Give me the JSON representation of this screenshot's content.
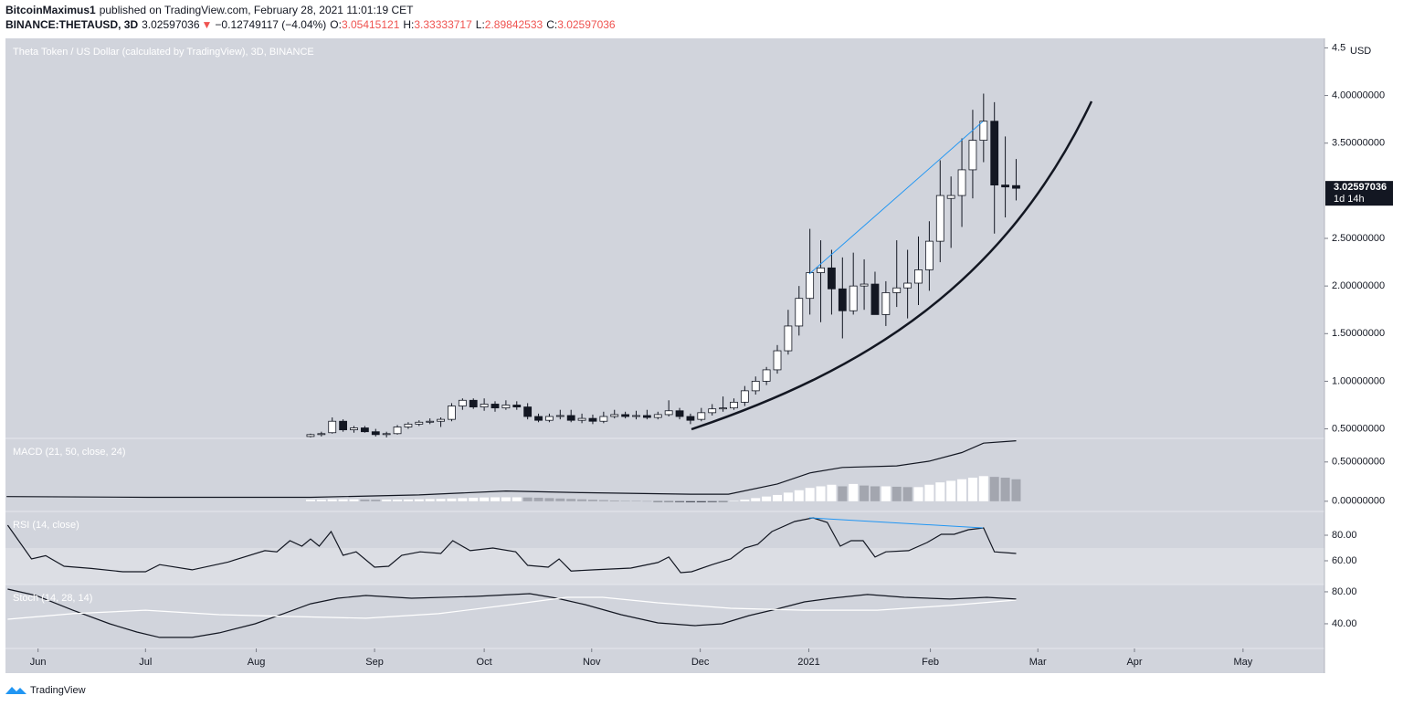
{
  "header": {
    "author": "BitcoinMaximus1",
    "published": "published on TradingView.com, February 28, 2021 11:01:19 CET",
    "symbol": "BINANCE:THETAUSD, 3D",
    "price": "3.02597036",
    "direction_symbol": "▼",
    "change": "−0.12749117 (−4.04%)",
    "ohlc": [
      {
        "label": "O:",
        "value": "3.05415121"
      },
      {
        "label": "H:",
        "value": "3.33333717"
      },
      {
        "label": "L:",
        "value": "2.89842533"
      },
      {
        "label": "C:",
        "value": "3.02597036"
      }
    ]
  },
  "footer": {
    "brand": "TradingView"
  },
  "chart_data": [
    {
      "type": "candlestick",
      "title": "Theta Token / US Dollar (calculated by TradingView), 3D, BINANCE",
      "unit_label": "USD",
      "xlim": [
        -28.1,
        93.4
      ],
      "xticks": [
        {
          "value": -25.1,
          "label": "Jun"
        },
        {
          "value": -15.2,
          "label": "Jul"
        },
        {
          "value": -5.0,
          "label": "Aug"
        },
        {
          "value": 5.9,
          "label": "Sep"
        },
        {
          "value": 16.0,
          "label": "Oct"
        },
        {
          "value": 25.9,
          "label": "Nov"
        },
        {
          "value": 35.9,
          "label": "Dec"
        },
        {
          "value": 45.9,
          "label": "2021"
        },
        {
          "value": 57.1,
          "label": "Feb"
        },
        {
          "value": 67.0,
          "label": "Mar"
        },
        {
          "value": 75.9,
          "label": "Apr"
        },
        {
          "value": 85.9,
          "label": "May"
        }
      ],
      "ylim": [
        0.4,
        4.6
      ],
      "yticks": [
        {
          "value": 4.5,
          "label": "4.5"
        },
        {
          "value": 4.0,
          "label": "4.00000000"
        },
        {
          "value": 3.5,
          "label": "3.50000000"
        },
        {
          "value": 2.5,
          "label": "2.50000000"
        },
        {
          "value": 2.0,
          "label": "2.00000000"
        },
        {
          "value": 1.5,
          "label": "1.50000000"
        },
        {
          "value": 1.0,
          "label": "1.00000000"
        },
        {
          "value": 0.5,
          "label": "0.50000000"
        }
      ],
      "up_color": "#ffffff",
      "down_color": "#131722",
      "candles": {
        "open": [
          0.42,
          0.44,
          0.46,
          0.58,
          0.49,
          0.51,
          0.47,
          0.44,
          0.45,
          0.52,
          0.55,
          0.57,
          0.58,
          0.6,
          0.74,
          0.8,
          0.73,
          0.76,
          0.72,
          0.75,
          0.73,
          0.63,
          0.59,
          0.63,
          0.64,
          0.59,
          0.61,
          0.58,
          0.63,
          0.65,
          0.63,
          0.64,
          0.62,
          0.65,
          0.69,
          0.63,
          0.6,
          0.67,
          0.71,
          0.72,
          0.78,
          0.9,
          1.0,
          1.12,
          1.32,
          1.58,
          1.87,
          2.14,
          2.19,
          1.97,
          1.74,
          2.0,
          2.02,
          1.7,
          1.93,
          1.98,
          2.03,
          2.17,
          2.47,
          2.92,
          2.95,
          3.22,
          3.53,
          3.73,
          3.06,
          3.05415121
        ],
        "high": [
          0.45,
          0.47,
          0.62,
          0.6,
          0.53,
          0.53,
          0.5,
          0.47,
          0.54,
          0.57,
          0.59,
          0.61,
          0.62,
          0.77,
          0.82,
          0.82,
          0.82,
          0.79,
          0.8,
          0.79,
          0.77,
          0.66,
          0.66,
          0.7,
          0.7,
          0.66,
          0.65,
          0.68,
          0.7,
          0.68,
          0.69,
          0.7,
          0.68,
          0.8,
          0.72,
          0.66,
          0.72,
          0.76,
          0.84,
          0.82,
          0.95,
          1.05,
          1.15,
          1.38,
          1.75,
          2.0,
          2.6,
          2.48,
          2.38,
          2.3,
          2.35,
          2.28,
          2.15,
          2.05,
          2.48,
          2.38,
          2.52,
          2.68,
          3.32,
          3.15,
          3.55,
          3.85,
          4.02,
          3.93,
          3.57,
          3.33333717
        ],
        "low": [
          0.41,
          0.42,
          0.45,
          0.47,
          0.46,
          0.46,
          0.42,
          0.41,
          0.44,
          0.5,
          0.53,
          0.55,
          0.52,
          0.58,
          0.7,
          0.71,
          0.69,
          0.68,
          0.7,
          0.7,
          0.6,
          0.57,
          0.57,
          0.6,
          0.57,
          0.56,
          0.55,
          0.56,
          0.61,
          0.61,
          0.6,
          0.6,
          0.6,
          0.63,
          0.6,
          0.55,
          0.58,
          0.64,
          0.68,
          0.7,
          0.74,
          0.86,
          0.96,
          1.08,
          1.28,
          1.48,
          1.7,
          1.62,
          1.7,
          1.45,
          1.7,
          1.75,
          1.7,
          1.58,
          1.78,
          1.66,
          1.8,
          1.95,
          2.25,
          2.4,
          2.62,
          2.92,
          3.3,
          2.55,
          2.72,
          2.89842533
        ],
        "close": [
          0.44,
          0.45,
          0.58,
          0.49,
          0.51,
          0.47,
          0.44,
          0.45,
          0.52,
          0.55,
          0.57,
          0.58,
          0.6,
          0.74,
          0.8,
          0.73,
          0.76,
          0.72,
          0.75,
          0.73,
          0.63,
          0.59,
          0.63,
          0.64,
          0.59,
          0.61,
          0.58,
          0.63,
          0.65,
          0.63,
          0.64,
          0.62,
          0.65,
          0.69,
          0.63,
          0.59,
          0.67,
          0.71,
          0.72,
          0.78,
          0.9,
          1.0,
          1.12,
          1.32,
          1.58,
          1.87,
          2.14,
          2.19,
          1.97,
          1.74,
          2.0,
          2.02,
          1.7,
          1.93,
          1.98,
          2.03,
          2.17,
          2.47,
          2.95,
          2.95,
          3.22,
          3.53,
          3.73,
          3.06,
          3.04,
          3.02597036
        ]
      },
      "last_price": {
        "value": 3.02597036,
        "label": "3.02597036"
      },
      "countdown": "1d 14h"
    },
    {
      "type": "macd",
      "title": "MACD (21, 50, close, 24)",
      "ylim": [
        -0.13,
        0.8
      ],
      "yticks": [
        {
          "value": 0.5,
          "label": "0.50000000"
        },
        {
          "value": 0.0,
          "label": "0.00000000"
        }
      ],
      "histogram": {
        "values": [
          0.02,
          0.02,
          0.025,
          0.025,
          0.025,
          0.022,
          0.02,
          0.02,
          0.02,
          0.022,
          0.025,
          0.028,
          0.03,
          0.035,
          0.04,
          0.045,
          0.048,
          0.05,
          0.05,
          0.05,
          0.048,
          0.045,
          0.04,
          0.035,
          0.03,
          0.025,
          0.02,
          0.015,
          0.01,
          0.006,
          0.004,
          0.002,
          -0.002,
          -0.005,
          -0.008,
          -0.01,
          -0.01,
          -0.008,
          -0.004,
          0.005,
          0.02,
          0.04,
          0.06,
          0.08,
          0.11,
          0.14,
          0.17,
          0.19,
          0.21,
          0.19,
          0.22,
          0.2,
          0.19,
          0.19,
          0.185,
          0.18,
          0.18,
          0.21,
          0.24,
          0.26,
          0.28,
          0.3,
          0.32,
          0.31,
          0.3,
          0.28
        ],
        "rising_color": "#ffffff",
        "falling_color": "#a3a6af",
        "negative_color": "#131722"
      },
      "line": {
        "color": "#131722",
        "x": [
          -28,
          -15,
          0,
          10,
          18,
          25,
          35,
          38.5,
          43,
          46,
          49,
          54,
          57,
          60,
          62,
          65
        ],
        "values": [
          0.06,
          0.05,
          0.05,
          0.08,
          0.13,
          0.11,
          0.09,
          0.09,
          0.22,
          0.36,
          0.43,
          0.45,
          0.51,
          0.62,
          0.74,
          0.77
        ]
      }
    },
    {
      "type": "line",
      "title": "RSI (14, close)",
      "ylim": [
        41.4,
        98.6
      ],
      "yticks": [
        {
          "value": 80,
          "label": "80.00"
        },
        {
          "value": 60,
          "label": "60.00"
        }
      ],
      "series": [
        {
          "color": "#131722",
          "x": [
            -27.9,
            -25.7,
            -24.4,
            -22.7,
            -20.2,
            -17.3,
            -15.2,
            -13.9,
            -10.9,
            -7.6,
            -4.2,
            -3.1,
            -1.9,
            -0.8,
            0,
            0.8,
            1.9,
            3.0,
            4.2,
            5.9,
            7.2,
            8.4,
            10.1,
            12.0,
            13.1,
            14.7,
            16.8,
            18.9,
            20.0,
            21.9,
            22.9,
            24.0,
            26.1,
            29.5,
            32.0,
            33.0,
            34.1,
            35.1,
            37.0,
            38.7,
            40.0,
            41.2,
            42.5,
            44.6,
            46.3,
            47.6,
            48.8,
            49.8,
            50.9,
            52.0,
            53.0,
            55.1,
            56.8,
            58.1,
            59.3,
            60.6,
            62.0,
            63.0,
            65.0
          ],
          "values": [
            87.9,
            61.4,
            64,
            55.7,
            54,
            51.4,
            51.4,
            57,
            52.9,
            59,
            67.9,
            67,
            75.7,
            71.4,
            77,
            71.4,
            82.9,
            64.3,
            67,
            55,
            55.7,
            64.3,
            67,
            65.7,
            75.7,
            67.9,
            70,
            67,
            56.4,
            55,
            61.4,
            52,
            52.9,
            54.3,
            58.6,
            62.9,
            50.7,
            51.4,
            57,
            61.4,
            70,
            72.9,
            82.9,
            90.7,
            93.6,
            90,
            71.4,
            75.7,
            75.7,
            62.9,
            67,
            67.9,
            74.3,
            80.7,
            80.7,
            84.3,
            85.7,
            67,
            65.7
          ]
        }
      ]
    },
    {
      "type": "line",
      "title": "Stoch (14, 28, 14)",
      "ylim": [
        9.1,
        89.1
      ],
      "yticks": [
        {
          "value": 80,
          "label": "80.00"
        },
        {
          "value": 40,
          "label": "40.00"
        }
      ],
      "series": [
        {
          "color": "#131722",
          "x": [
            -27.9,
            -25.3,
            -21.9,
            -18.5,
            -16.0,
            -13.9,
            -10.9,
            -8.4,
            -5.1,
            -2.5,
            0,
            2.5,
            5.1,
            9.3,
            15.2,
            20.2,
            22.7,
            25.3,
            28.6,
            32.0,
            35.4,
            37.9,
            40.4,
            42.9,
            45.5,
            48.0,
            51.3,
            54.7,
            58.9,
            62.3,
            65.0
          ],
          "values": [
            83.4,
            75.4,
            57,
            40,
            29.7,
            22.9,
            22.9,
            28.6,
            40,
            52.6,
            65,
            72,
            75.4,
            72,
            74.3,
            77.7,
            72,
            64,
            51.4,
            41.1,
            37.7,
            40,
            50.3,
            58.3,
            67.4,
            72,
            76.6,
            73.1,
            70.9,
            73.1,
            70.9
          ]
        },
        {
          "color": "#ffffff",
          "x": [
            -27.9,
            -21.9,
            -15.2,
            -8.4,
            -1.7,
            5.1,
            11.8,
            18.5,
            23.6,
            26.9,
            32.0,
            38.7,
            45.5,
            52.2,
            58.9,
            65.0
          ],
          "values": [
            45.7,
            52.6,
            57,
            51.4,
            49.1,
            46.9,
            52.6,
            64,
            73.1,
            73.1,
            66.3,
            59.4,
            57,
            57,
            62.9,
            69.7
          ]
        }
      ]
    }
  ]
}
